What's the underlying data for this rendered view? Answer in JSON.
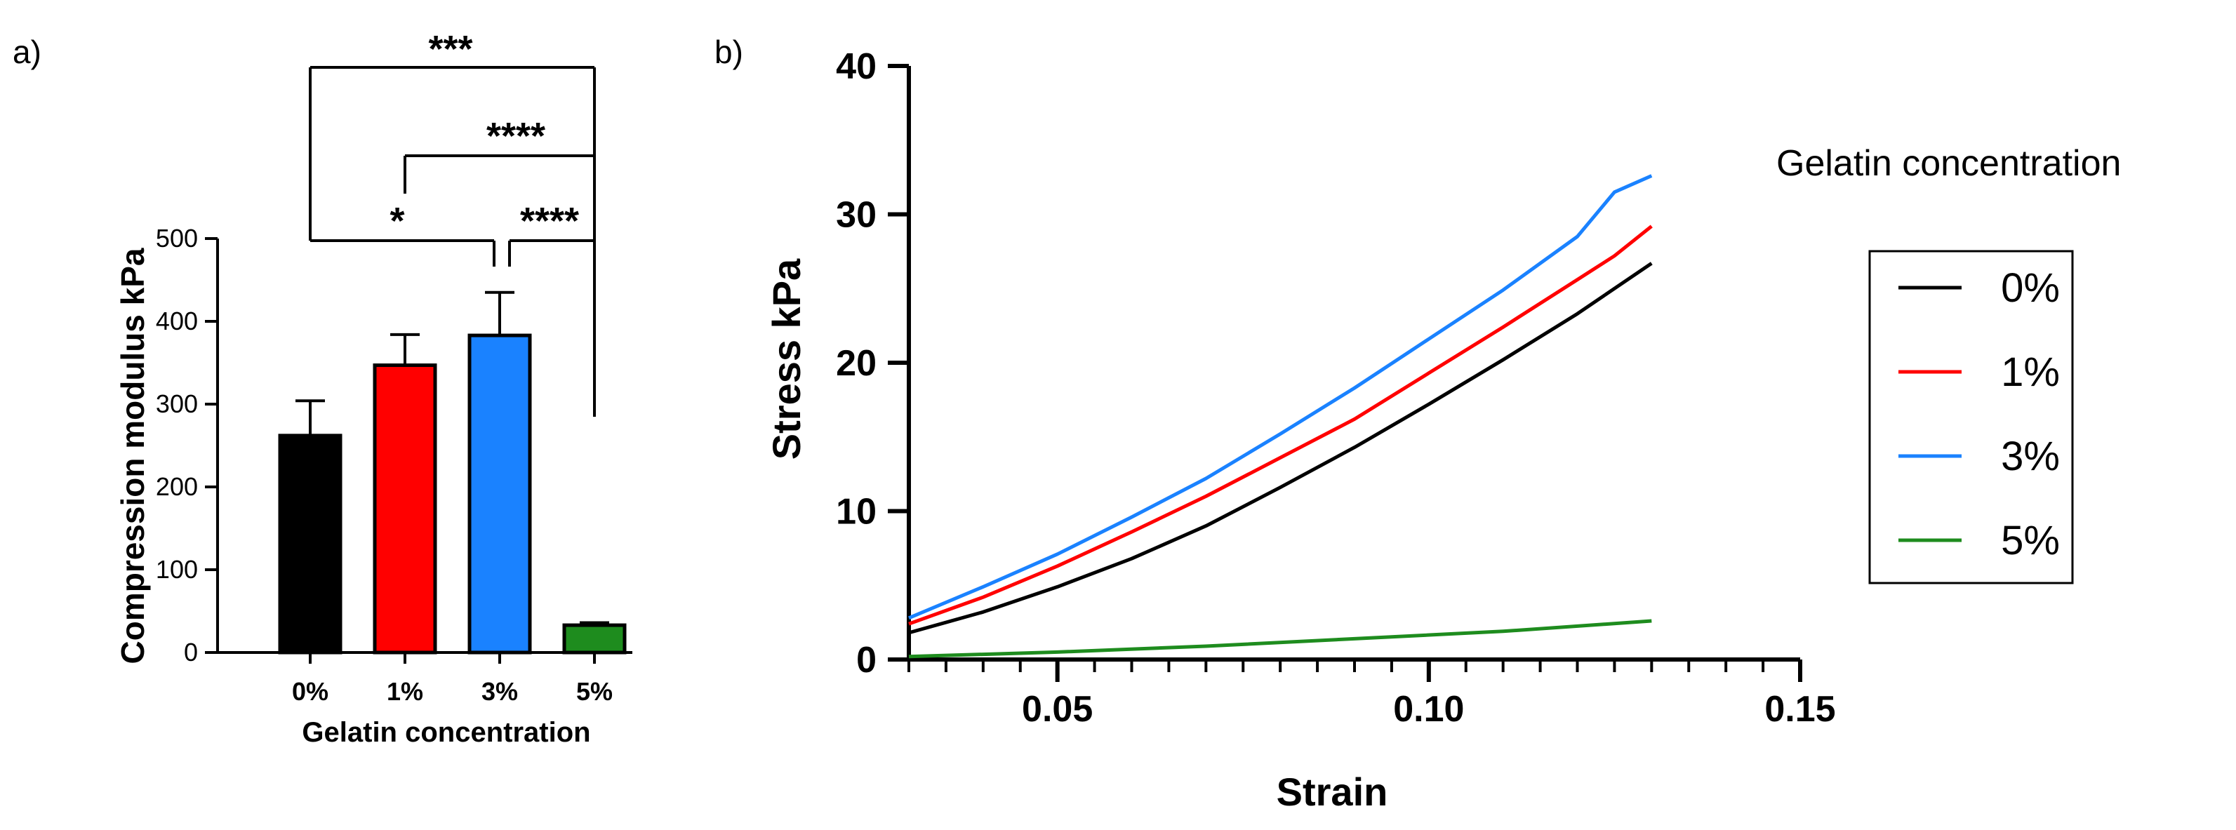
{
  "panel_labels": {
    "a": "a)",
    "b": "b)"
  },
  "chart_data": [
    {
      "type": "bar",
      "title": "",
      "xlabel": "Gelatin concentration",
      "ylabel": "Compression modulus kPa",
      "categories": [
        "0%",
        "1%",
        "3%",
        "5%"
      ],
      "values": [
        262,
        347,
        383,
        33
      ],
      "errors": [
        42,
        37,
        52,
        3
      ],
      "colors": [
        "#000000",
        "#ff0000",
        "#1a82ff",
        "#1e8c1e"
      ],
      "ylim": [
        0,
        500
      ],
      "yticks": [
        "0",
        "100",
        "200",
        "300",
        "400",
        "500"
      ],
      "significance": [
        {
          "from": 0,
          "to": 3,
          "label": "***"
        },
        {
          "from": 1,
          "to": 3,
          "label": "****"
        },
        {
          "from": 0,
          "to": 2,
          "label": "*"
        },
        {
          "from": 2,
          "to": 3,
          "label": "****"
        }
      ]
    },
    {
      "type": "line",
      "title": "",
      "xlabel": "Strain",
      "ylabel": "Stress kPa",
      "xlim": [
        0.03,
        0.15
      ],
      "ylim": [
        0,
        40
      ],
      "xticks": [
        "0.05",
        "0.10",
        "0.15"
      ],
      "yticks": [
        "0",
        "10",
        "20",
        "30",
        "40"
      ],
      "legend_title": "Gelatin concentration",
      "legend_position": "right",
      "series": [
        {
          "name": "0%",
          "color": "#000000",
          "x": [
            0.03,
            0.04,
            0.05,
            0.06,
            0.07,
            0.08,
            0.09,
            0.1,
            0.11,
            0.12,
            0.13
          ],
          "y": [
            1.8,
            3.2,
            4.9,
            6.8,
            9.0,
            11.6,
            14.3,
            17.2,
            20.2,
            23.3,
            26.7
          ]
        },
        {
          "name": "1%",
          "color": "#ff0000",
          "x": [
            0.03,
            0.04,
            0.05,
            0.06,
            0.07,
            0.08,
            0.09,
            0.1,
            0.11,
            0.12,
            0.125,
            0.13
          ],
          "y": [
            2.4,
            4.2,
            6.3,
            8.6,
            11.0,
            13.6,
            16.2,
            19.3,
            22.4,
            25.6,
            27.2,
            29.2
          ]
        },
        {
          "name": "3%",
          "color": "#1a82ff",
          "x": [
            0.03,
            0.04,
            0.05,
            0.06,
            0.07,
            0.08,
            0.09,
            0.1,
            0.11,
            0.12,
            0.125,
            0.13
          ],
          "y": [
            2.8,
            4.9,
            7.1,
            9.6,
            12.2,
            15.2,
            18.3,
            21.6,
            24.9,
            28.5,
            31.5,
            32.6
          ]
        },
        {
          "name": "5%",
          "color": "#1e8c1e",
          "x": [
            0.03,
            0.05,
            0.07,
            0.09,
            0.11,
            0.13
          ],
          "y": [
            0.2,
            0.5,
            0.9,
            1.4,
            1.9,
            2.6
          ]
        }
      ]
    }
  ]
}
